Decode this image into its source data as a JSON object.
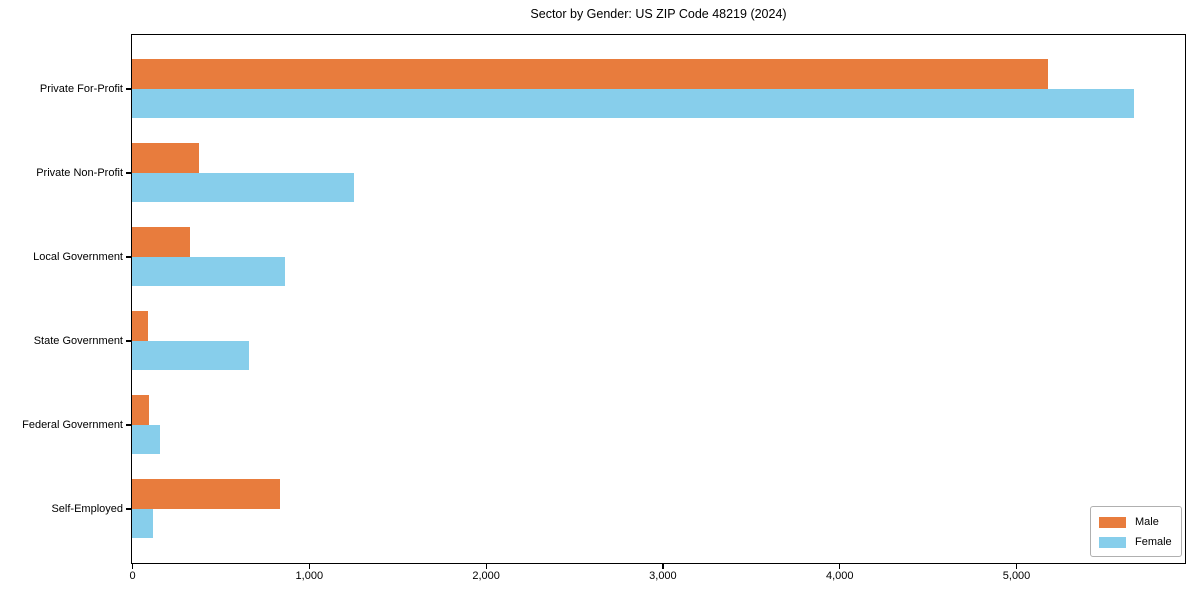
{
  "title": "Sector by Gender: US ZIP Code 48219 (2024)",
  "chart_data": {
    "type": "bar",
    "orientation": "horizontal",
    "title": "Sector by Gender: US ZIP Code 48219 (2024)",
    "categories": [
      "Private For-Profit",
      "Private Non-Profit",
      "Local Government",
      "State Government",
      "Federal Government",
      "Self-Employed"
    ],
    "series": [
      {
        "name": "Male",
        "color": "#e87c3d",
        "values": [
          5180,
          380,
          330,
          90,
          95,
          835
        ]
      },
      {
        "name": "Female",
        "color": "#87ceeb",
        "values": [
          5665,
          1255,
          865,
          660,
          160,
          120
        ]
      }
    ],
    "xlabel": "",
    "ylabel": "",
    "xlim": [
      0,
      5950
    ],
    "x_ticks": [
      0,
      1000,
      2000,
      3000,
      4000,
      5000
    ],
    "x_tick_labels": [
      "0",
      "1,000",
      "2,000",
      "3,000",
      "4,000",
      "5,000"
    ],
    "grid": false,
    "legend_position": "lower right"
  },
  "legend": {
    "items": [
      {
        "label": "Male",
        "color": "#e87c3d"
      },
      {
        "label": "Female",
        "color": "#87ceeb"
      }
    ]
  }
}
